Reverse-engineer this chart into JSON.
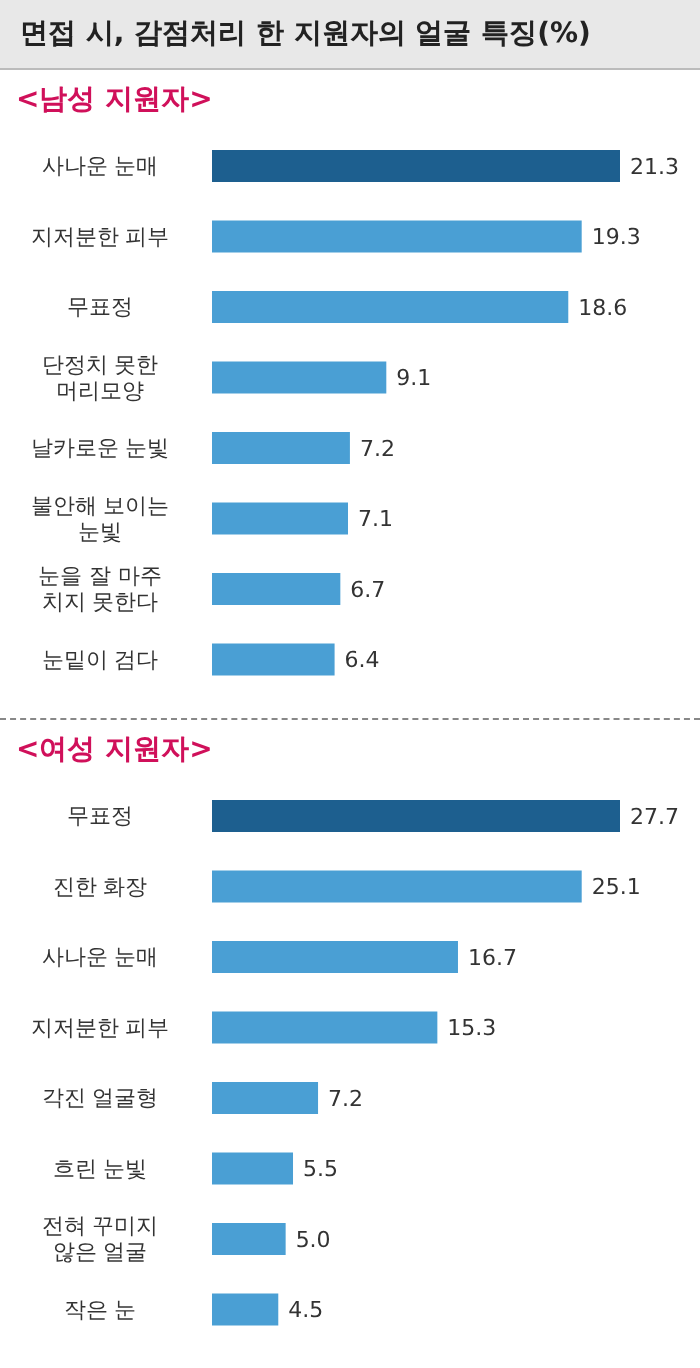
{
  "chart_data": [
    {
      "type": "bar",
      "orientation": "horizontal",
      "title": "면접 시, 감점처리 한 지원자의 얼굴 특징(%)",
      "subtitle": "<남성 지원자>",
      "categories": [
        "사나운 눈매",
        "지저분한 피부",
        "무표정",
        "단정치 못한\n머리모양",
        "날카로운 눈빛",
        "불안해 보이는\n눈빛",
        "눈을 잘 마주\n치지 못한다",
        "눈밑이 검다"
      ],
      "values": [
        21.3,
        19.3,
        18.6,
        9.1,
        7.2,
        7.1,
        6.7,
        6.4
      ],
      "colors": [
        "#1d5f8f",
        "#4a9fd4",
        "#4a9fd4",
        "#4a9fd4",
        "#4a9fd4",
        "#4a9fd4",
        "#4a9fd4",
        "#4a9fd4"
      ],
      "data_labels": true,
      "tick_labels": "y",
      "grid": false,
      "legend": false
    },
    {
      "type": "bar",
      "orientation": "horizontal",
      "subtitle": "<여성 지원자>",
      "categories": [
        "무표정",
        "진한 화장",
        "사나운 눈매",
        "지저분한 피부",
        "각진 얼굴형",
        "흐린 눈빛",
        "전혀 꾸미지\n않은 얼굴",
        "작은 눈"
      ],
      "values": [
        27.7,
        25.1,
        16.7,
        15.3,
        7.2,
        5.5,
        5.0,
        4.5
      ],
      "value_labels": [
        "27.7",
        "25.1",
        "16.7",
        "15.3",
        "7.2",
        "5.5",
        "5.0",
        "4.5"
      ],
      "colors": [
        "#1d5f8f",
        "#4a9fd4",
        "#4a9fd4",
        "#4a9fd4",
        "#4a9fd4",
        "#4a9fd4",
        "#4a9fd4",
        "#4a9fd4"
      ],
      "tick_labels": "y",
      "grid": false,
      "legend": false
    }
  ]
}
